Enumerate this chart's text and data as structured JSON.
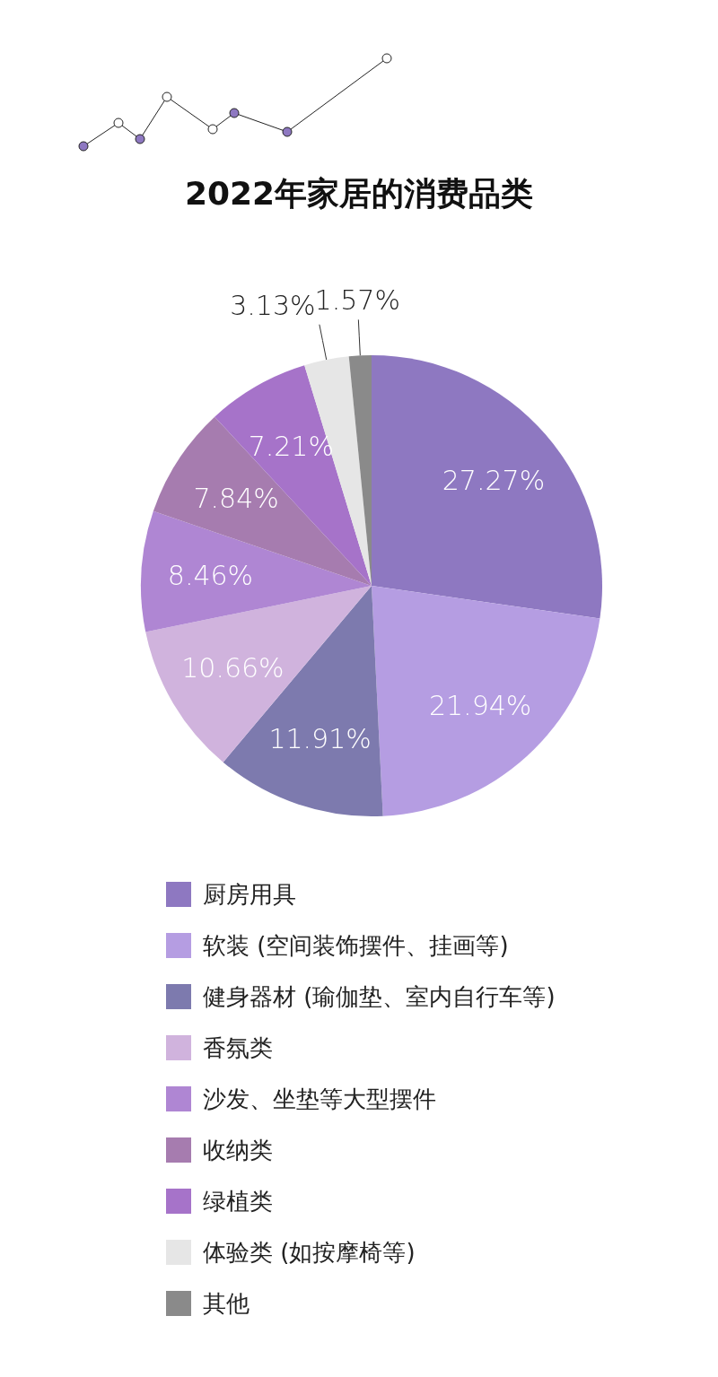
{
  "chart_data": {
    "type": "pie",
    "title": "2022年家居的消费品类",
    "categories": [
      "厨房用具",
      "软装 (空间装饰摆件、挂画等)",
      "健身器材 (瑜伽垫、室内自行车等)",
      "香氛类",
      "沙发、坐垫等大型摆件",
      "收纳类",
      "绿植类",
      "体验类 (如按摩椅等)",
      "其他"
    ],
    "values": [
      27.27,
      21.94,
      11.91,
      10.66,
      8.46,
      7.84,
      7.21,
      3.13,
      1.57
    ],
    "value_labels": [
      "27.27%",
      "21.94%",
      "11.91%",
      "10.66%",
      "8.46%",
      "7.84%",
      "7.21%",
      "3.13%",
      "1.57%"
    ],
    "colors": [
      "#8e78c1",
      "#b59de2",
      "#7d7aae",
      "#d0b3dd",
      "#af86d3",
      "#a67caf",
      "#a673c9",
      "#e6e6e6",
      "#8a8a8a"
    ],
    "legend": "bottom"
  }
}
